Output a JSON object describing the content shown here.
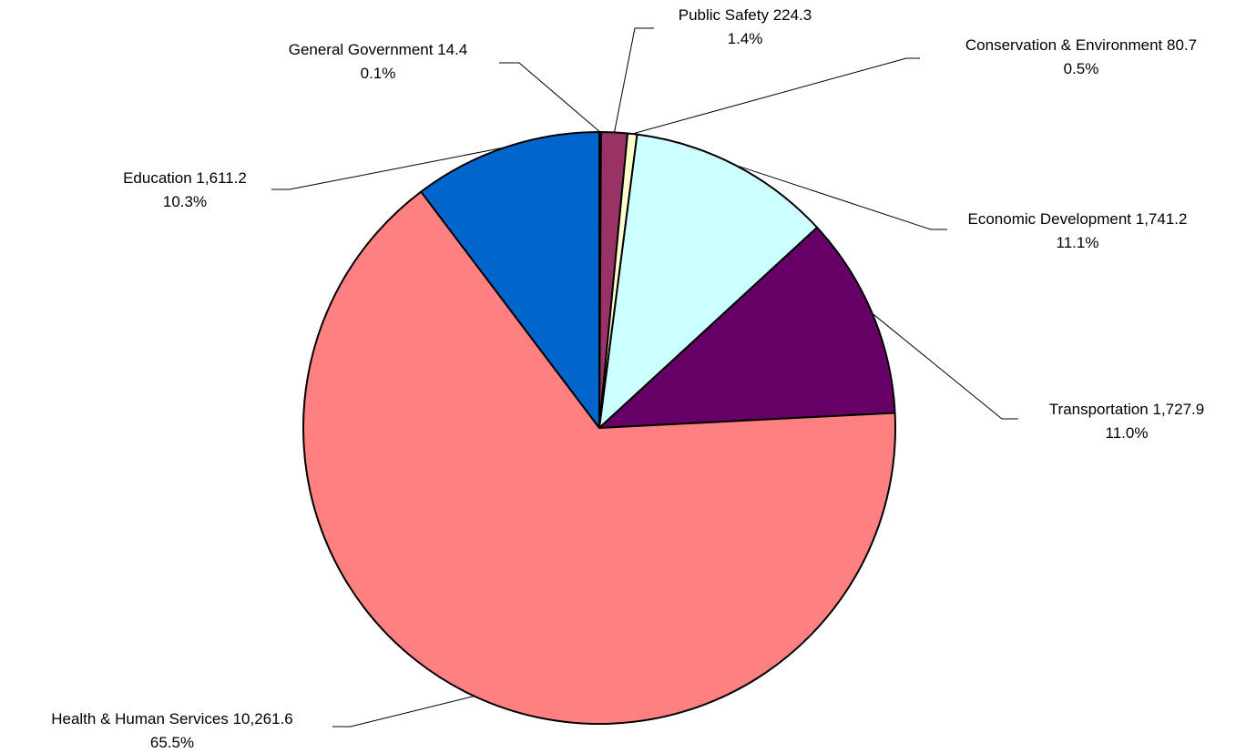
{
  "chart_data": {
    "type": "pie",
    "title": "",
    "legend": "none",
    "grid": false,
    "start_angle_deg": 0,
    "direction": "clockwise",
    "slices": [
      {
        "label": "General Government",
        "value": 14.4,
        "value_text": "14.4",
        "percent_text": "0.1%",
        "color": "#ffffff"
      },
      {
        "label": "Public Safety",
        "value": 224.3,
        "value_text": "224.3",
        "percent_text": "1.4%",
        "color": "#993366"
      },
      {
        "label": "Conservation & Environment",
        "value": 80.7,
        "value_text": "80.7",
        "percent_text": "0.5%",
        "color": "#ffffcc"
      },
      {
        "label": "Economic Development",
        "value": 1741.2,
        "value_text": "1,741.2",
        "percent_text": "11.1%",
        "color": "#ccffff"
      },
      {
        "label": "Transportation",
        "value": 1727.9,
        "value_text": "1,727.9",
        "percent_text": "11.0%",
        "color": "#660066"
      },
      {
        "label": "Health & Human Services",
        "value": 10261.6,
        "value_text": "10,261.6",
        "percent_text": "65.5%",
        "color": "#ff8080"
      },
      {
        "label": "Education",
        "value": 1611.2,
        "value_text": "1,611.2",
        "percent_text": "10.3%",
        "color": "#0066cc"
      }
    ]
  }
}
